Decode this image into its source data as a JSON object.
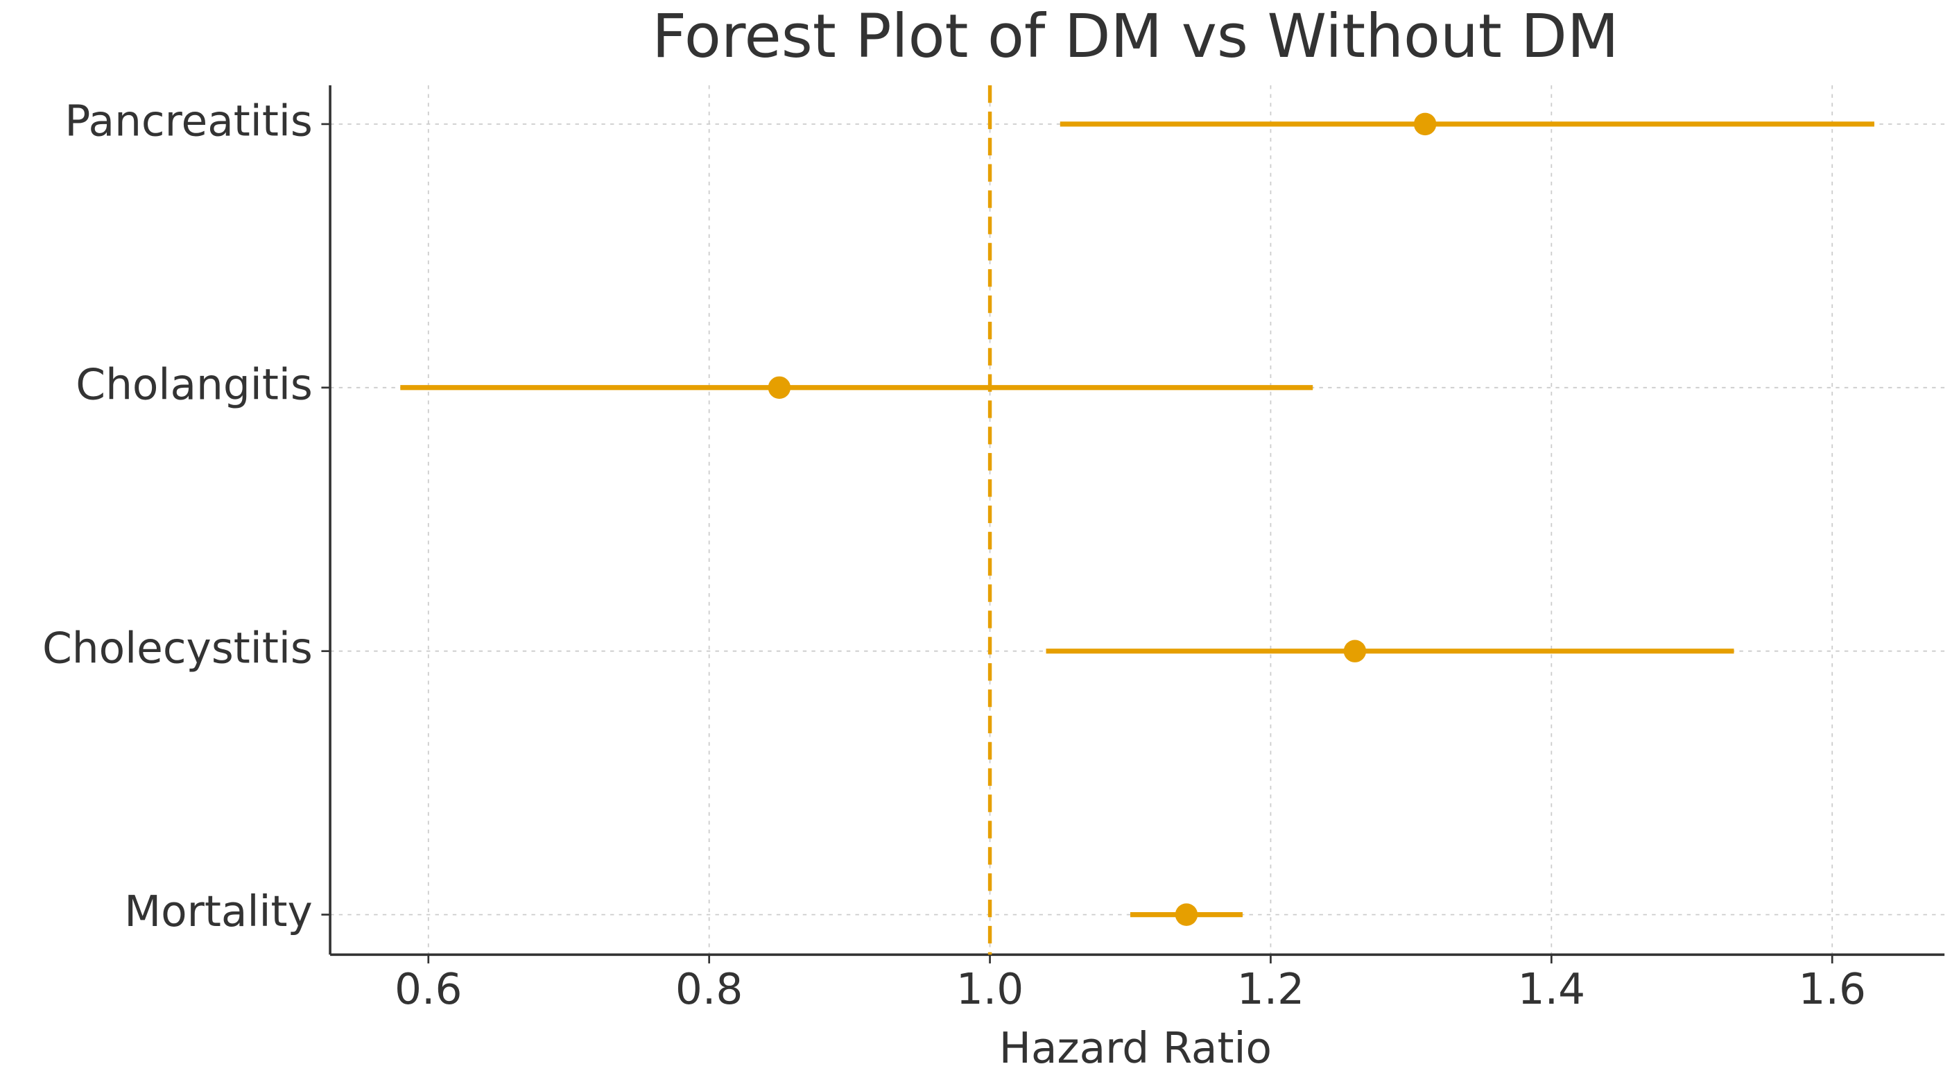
{
  "chart_data": {
    "type": "forest",
    "title": "Forest Plot of DM vs Without DM",
    "x_label": "Hazard Ratio",
    "categories": [
      "Pancreatitis",
      "Cholangitis",
      "Cholecystitis",
      "Mortality"
    ],
    "values": [
      1.31,
      0.85,
      1.26,
      1.14
    ],
    "lower": [
      1.05,
      0.58,
      1.04,
      1.1
    ],
    "upper": [
      1.63,
      1.23,
      1.53,
      1.18
    ],
    "color": "#e69f00",
    "reference_line": 1,
    "xlim": [
      0.53,
      1.68
    ],
    "xticks": [
      0.6,
      0.8,
      {
        "value": 1,
        "label": "1.0"
      },
      1.2,
      1.4,
      1.6
    ],
    "grid": true
  }
}
